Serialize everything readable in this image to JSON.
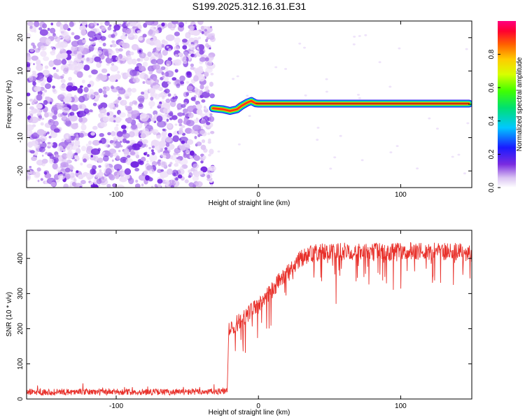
{
  "title": "S199.2025.312.16.31.E31",
  "chart_data": [
    {
      "type": "heatmap",
      "title": "S199.2025.312.16.31.E31",
      "xlabel": "Height of straight line (km)",
      "ylabel": "Frequency (Hz)",
      "xlim": [
        -163,
        150
      ],
      "ylim": [
        -25,
        25
      ],
      "xticks": [
        -100,
        0,
        100
      ],
      "yticks": [
        -20,
        -10,
        0,
        10,
        20
      ],
      "noise_region_x": [
        -163,
        -32
      ],
      "signal_line": {
        "frequency_hz": 0.2,
        "x_start": -32,
        "x_end": 148,
        "transition": [
          [
            -32,
            -1.2
          ],
          [
            -25,
            -1.5
          ],
          [
            -20,
            -2.0
          ],
          [
            -15,
            -1.5
          ],
          [
            -12,
            -0.5
          ],
          [
            -8,
            0.5
          ],
          [
            -5,
            1.0
          ],
          [
            -2,
            0.3
          ],
          [
            0,
            0.2
          ]
        ]
      },
      "colorbar": {
        "label": "Normalized spectral amplitude",
        "range": [
          0.0,
          1.0
        ],
        "ticks": [
          "0.0",
          "0.2",
          "0.4",
          "0.6",
          "0.8"
        ]
      }
    },
    {
      "type": "line",
      "xlabel": "Height of straight line (km)",
      "ylabel": "SNR (10 * v/v)",
      "xlim": [
        -163,
        150
      ],
      "ylim": [
        0,
        480
      ],
      "xticks": [
        -100,
        0,
        100
      ],
      "yticks": [
        0,
        100,
        200,
        300,
        400
      ],
      "series": [
        {
          "name": "SNR",
          "color": "#e8302a",
          "envelope_x": [
            -163,
            -100,
            -50,
            -22,
            -21,
            -15,
            -10,
            -5,
            0,
            5,
            10,
            15,
            20,
            25,
            30,
            35,
            40,
            50,
            60,
            70,
            80,
            90,
            100,
            110,
            120,
            130,
            140,
            150
          ],
          "envelope_y": [
            20,
            20,
            20,
            22,
            190,
            215,
            230,
            250,
            265,
            290,
            310,
            340,
            360,
            380,
            400,
            410,
            415,
            420,
            420,
            420,
            420,
            418,
            420,
            420,
            420,
            420,
            420,
            415
          ]
        }
      ]
    }
  ]
}
